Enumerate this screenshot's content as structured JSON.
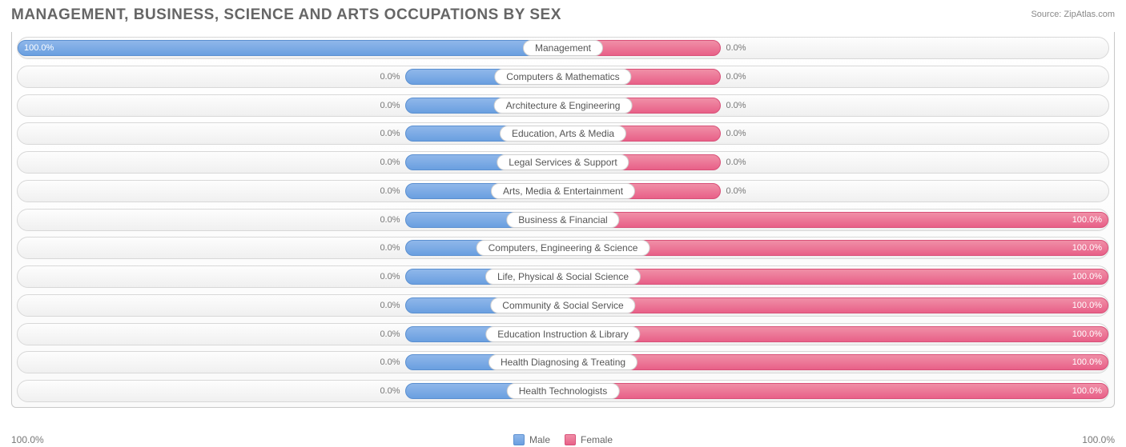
{
  "title": "MANAGEMENT, BUSINESS, SCIENCE AND ARTS OCCUPATIONS BY SEX",
  "source": "Source: ZipAtlas.com",
  "colors": {
    "male_top": "#8fb7ea",
    "male_bottom": "#6a9fe0",
    "male_border": "#5a8fd0",
    "female_top": "#f08fa7",
    "female_bottom": "#e86088",
    "female_border": "#d85078",
    "row_border": "#d8d8d8",
    "text": "#666666",
    "value_text": "#777777",
    "value_in_bar": "#ffffff",
    "background": "#ffffff"
  },
  "axis": {
    "left_label": "100.0%",
    "right_label": "100.0%",
    "male_min_bar_pct": 14.5,
    "female_min_bar_pct": 14.5
  },
  "legend": {
    "male": "Male",
    "female": "Female"
  },
  "categories": [
    {
      "label": "Management",
      "male": 100.0,
      "female": 0.0
    },
    {
      "label": "Computers & Mathematics",
      "male": 0.0,
      "female": 0.0
    },
    {
      "label": "Architecture & Engineering",
      "male": 0.0,
      "female": 0.0
    },
    {
      "label": "Education, Arts & Media",
      "male": 0.0,
      "female": 0.0
    },
    {
      "label": "Legal Services & Support",
      "male": 0.0,
      "female": 0.0
    },
    {
      "label": "Arts, Media & Entertainment",
      "male": 0.0,
      "female": 0.0
    },
    {
      "label": "Business & Financial",
      "male": 0.0,
      "female": 100.0
    },
    {
      "label": "Computers, Engineering & Science",
      "male": 0.0,
      "female": 100.0
    },
    {
      "label": "Life, Physical & Social Science",
      "male": 0.0,
      "female": 100.0
    },
    {
      "label": "Community & Social Service",
      "male": 0.0,
      "female": 100.0
    },
    {
      "label": "Education Instruction & Library",
      "male": 0.0,
      "female": 100.0
    },
    {
      "label": "Health Diagnosing & Treating",
      "male": 0.0,
      "female": 100.0
    },
    {
      "label": "Health Technologists",
      "male": 0.0,
      "female": 100.0
    }
  ]
}
